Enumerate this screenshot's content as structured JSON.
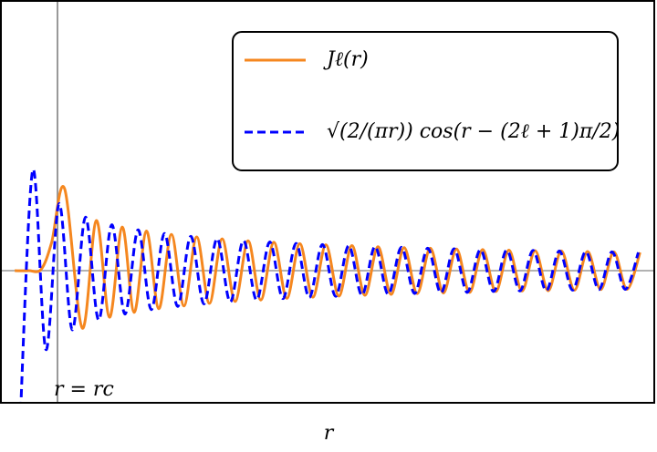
{
  "chart_data": {
    "type": "line",
    "xlabel": "r",
    "xlim": [
      -2.6,
      153.3
    ],
    "ylim": [
      -0.469,
      0.958
    ],
    "grid": false,
    "legend": "upper right",
    "axhline": 0,
    "vline": {
      "x": 10.9,
      "label": "r = rc"
    },
    "series": [
      {
        "name": "Jℓ(r)",
        "color": "#f5871f",
        "linestyle": "solid",
        "x": [
          0.7,
          4.0,
          7.0,
          9.5,
          12.6,
          16.82,
          20.17,
          23.31,
          26.35,
          29.19,
          32.13,
          35.07,
          38.07,
          41.06,
          44.1,
          47.14,
          50.18,
          53.27,
          56.37,
          59.41,
          62.52,
          65.62,
          68.71,
          71.82,
          74.93,
          78.04,
          81.15,
          84.26,
          87.37,
          90.49,
          93.61,
          96.73,
          99.85,
          102.98,
          106.1,
          109.22,
          112.35,
          115.48,
          118.61,
          121.74,
          124.86,
          127.99,
          131.12,
          134.26,
          137.39,
          140.52,
          143.65,
          146.78,
          149.91
        ],
        "values": [
          0,
          0,
          0.005,
          0.1,
          0.291,
          -0.204,
          0.178,
          -0.165,
          0.155,
          -0.148,
          0.141,
          -0.135,
          0.129,
          -0.125,
          0.12,
          -0.116,
          0.113,
          -0.109,
          0.106,
          -0.104,
          0.101,
          -0.098,
          0.096,
          -0.094,
          0.092,
          -0.09,
          0.089,
          -0.087,
          0.085,
          -0.084,
          0.082,
          -0.081,
          0.08,
          -0.079,
          0.077,
          -0.077,
          0.075,
          -0.074,
          0.073,
          -0.072,
          0.071,
          -0.071,
          0.07,
          -0.069,
          0.068,
          -0.067,
          0.067,
          -0.066,
          0.065
        ]
      },
      {
        "name": "√(2/(πr)) cos(r − (2ℓ + 1)π/2)",
        "color": "#0000ff",
        "linestyle": "dashed",
        "x": [
          1.86,
          5.0,
          8.14,
          11.28,
          14.42,
          17.57,
          20.71,
          23.85,
          26.99,
          30.13,
          33.27,
          36.42,
          39.56,
          42.7,
          45.84,
          48.98,
          52.12,
          55.27,
          58.41,
          61.55,
          64.69,
          67.83,
          70.97,
          74.12,
          77.26,
          80.4,
          83.54,
          86.68,
          89.82,
          92.96,
          96.11,
          99.25,
          102.39,
          105.53,
          108.67,
          111.81,
          114.96,
          118.1,
          121.24,
          124.38,
          127.52,
          130.66,
          133.81,
          136.95,
          140.09,
          143.23,
          146.37,
          149.51
        ],
        "values": [
          -0.585,
          0.357,
          -0.28,
          0.238,
          -0.21,
          0.19,
          -0.175,
          0.163,
          -0.154,
          0.145,
          -0.138,
          0.132,
          -0.127,
          0.122,
          -0.118,
          0.114,
          -0.111,
          0.107,
          -0.104,
          0.102,
          -0.099,
          0.097,
          -0.095,
          0.093,
          -0.091,
          0.089,
          -0.087,
          0.086,
          -0.084,
          0.083,
          -0.081,
          0.08,
          -0.079,
          0.078,
          -0.077,
          0.075,
          -0.074,
          0.073,
          -0.072,
          0.072,
          -0.071,
          0.07,
          -0.069,
          0.068,
          -0.067,
          0.067,
          -0.066,
          0.065
        ]
      }
    ]
  }
}
